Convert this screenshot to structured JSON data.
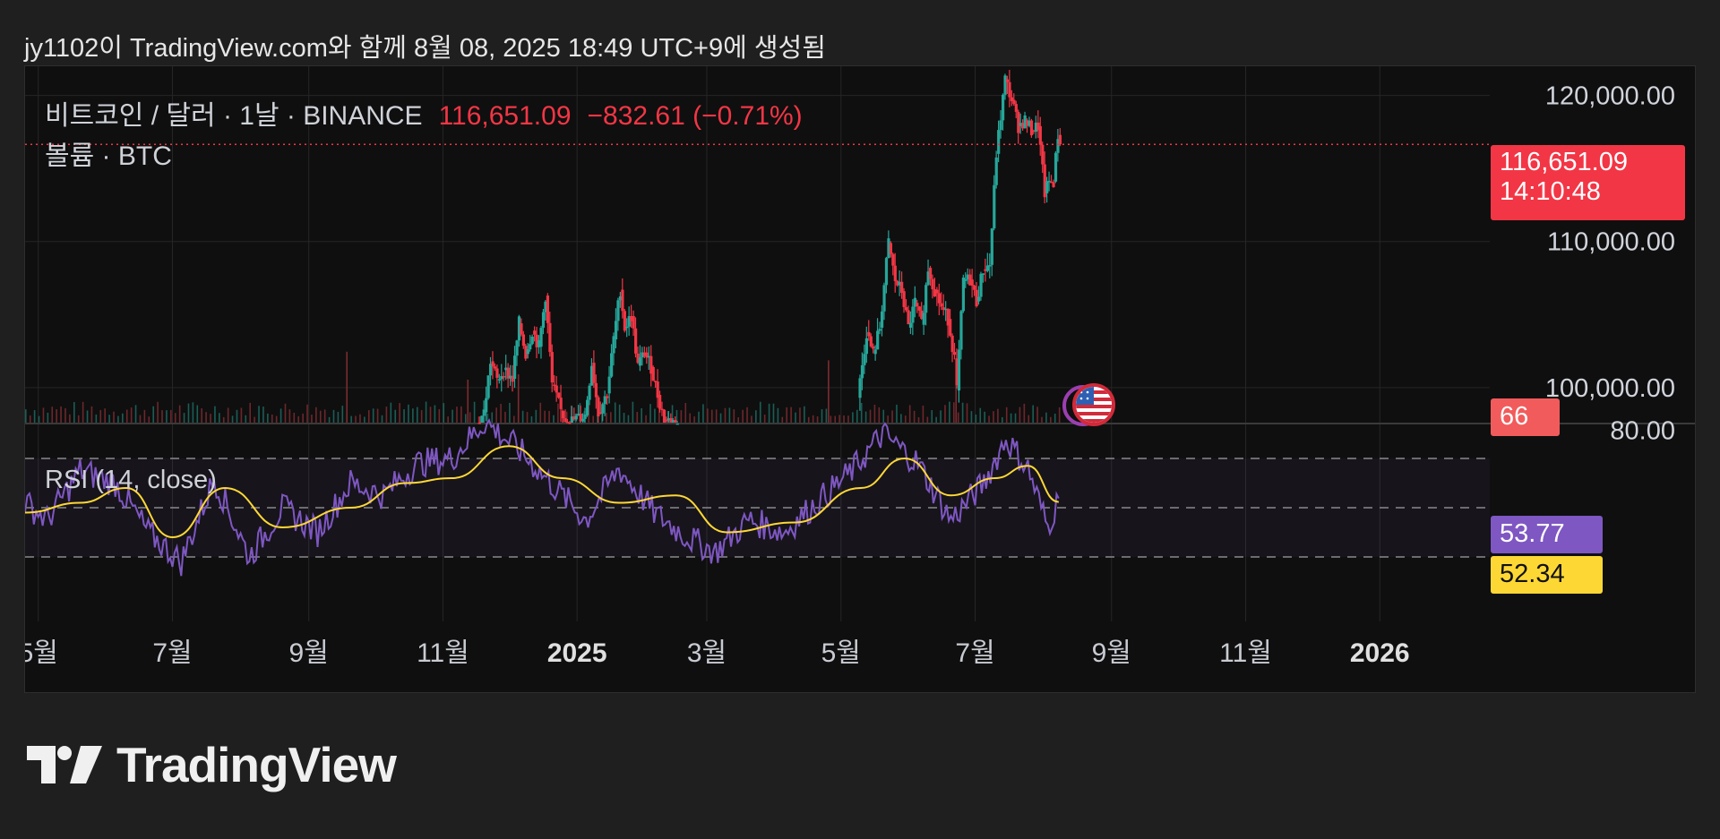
{
  "attribution": "jy1102이 TradingView.com와 함께 8월 08, 2025 18:49 UTC+9에 생성됨",
  "legend": {
    "symbol": "비트코인 / 달러 · 1날 · BINANCE",
    "last_price": "116,651.09",
    "change": "−832.61 (−0.71%)",
    "volume_label": "볼륨 · BTC",
    "rsi_label": "RSI (14, close)"
  },
  "tags": {
    "price": "116,651.09",
    "countdown": "14:10:48",
    "volume": "66",
    "rsi": "53.77",
    "rsi_ma": "52.34"
  },
  "colors": {
    "up": "#26a69a",
    "down": "#f23645",
    "rsi": "#7e57c2",
    "rsi_ma": "#fdd835",
    "background": "#0f0f0f"
  },
  "icons": {
    "event_marker": "us-flag-icon",
    "logo": "tradingview-logo-icon"
  },
  "logo_text": "TradingView",
  "chart_data": {
    "type": "candlestick",
    "x_range": [
      "2024-04-25",
      "2026-02-20"
    ],
    "price_axis": {
      "ticks": [
        120000,
        110000,
        100000
      ],
      "tick_labels": [
        "120,000.00",
        "110,000.00",
        "100,000.00"
      ],
      "range": [
        97600,
        122000
      ]
    },
    "last_price": 116651.09,
    "x_ticks": [
      {
        "date": "2024-05-01",
        "label": "5월",
        "bold": false
      },
      {
        "date": "2024-07-01",
        "label": "7월",
        "bold": false
      },
      {
        "date": "2024-09-01",
        "label": "9월",
        "bold": false
      },
      {
        "date": "2024-11-01",
        "label": "11월",
        "bold": false
      },
      {
        "date": "2025-01-01",
        "label": "2025",
        "bold": true
      },
      {
        "date": "2025-03-01",
        "label": "3월",
        "bold": false
      },
      {
        "date": "2025-05-01",
        "label": "5월",
        "bold": false
      },
      {
        "date": "2025-07-01",
        "label": "7월",
        "bold": false
      },
      {
        "date": "2025-09-01",
        "label": "9월",
        "bold": false
      },
      {
        "date": "2025-11-01",
        "label": "11월",
        "bold": false
      },
      {
        "date": "2026-01-01",
        "label": "2026",
        "bold": true
      }
    ],
    "price_series": [
      [
        "2024-11-16",
        97600
      ],
      [
        "2024-11-19",
        98300
      ],
      [
        "2024-11-22",
        101800
      ],
      [
        "2024-11-25",
        100500
      ],
      [
        "2024-11-28",
        101200
      ],
      [
        "2024-12-02",
        100600
      ],
      [
        "2024-12-05",
        104400
      ],
      [
        "2024-12-08",
        102300
      ],
      [
        "2024-12-11",
        103900
      ],
      [
        "2024-12-14",
        102800
      ],
      [
        "2024-12-17",
        106300
      ],
      [
        "2024-12-20",
        100200
      ],
      [
        "2024-12-24",
        98400
      ],
      [
        "2024-12-27",
        97600
      ],
      [
        "2025-01-04",
        98100
      ],
      [
        "2025-01-07",
        101700
      ],
      [
        "2025-01-10",
        98300
      ],
      [
        "2025-01-14",
        99600
      ],
      [
        "2025-01-17",
        103300
      ],
      [
        "2025-01-20",
        106700
      ],
      [
        "2025-01-22",
        104100
      ],
      [
        "2025-01-25",
        104900
      ],
      [
        "2025-01-28",
        101500
      ],
      [
        "2025-01-31",
        102400
      ],
      [
        "2025-02-03",
        101400
      ],
      [
        "2025-02-06",
        99500
      ],
      [
        "2025-02-09",
        97800
      ],
      [
        "2025-02-15",
        97600
      ],
      [
        "2025-05-08",
        99300
      ],
      [
        "2025-05-12",
        103800
      ],
      [
        "2025-05-15",
        102300
      ],
      [
        "2025-05-18",
        104100
      ],
      [
        "2025-05-22",
        109900
      ],
      [
        "2025-05-25",
        107300
      ],
      [
        "2025-05-28",
        106600
      ],
      [
        "2025-05-31",
        104100
      ],
      [
        "2025-06-03",
        105800
      ],
      [
        "2025-06-06",
        104300
      ],
      [
        "2025-06-09",
        108200
      ],
      [
        "2025-06-12",
        106700
      ],
      [
        "2025-06-15",
        105500
      ],
      [
        "2025-06-18",
        104700
      ],
      [
        "2025-06-21",
        102000
      ],
      [
        "2025-06-22",
        99800
      ],
      [
        "2025-06-25",
        107300
      ],
      [
        "2025-06-28",
        107400
      ],
      [
        "2025-07-01",
        105900
      ],
      [
        "2025-07-04",
        108100
      ],
      [
        "2025-07-07",
        108400
      ],
      [
        "2025-07-10",
        116000
      ],
      [
        "2025-07-14",
        121100
      ],
      [
        "2025-07-17",
        119700
      ],
      [
        "2025-07-20",
        117900
      ],
      [
        "2025-07-23",
        118300
      ],
      [
        "2025-07-26",
        117600
      ],
      [
        "2025-07-29",
        117900
      ],
      [
        "2025-08-01",
        113300
      ],
      [
        "2025-08-03",
        114100
      ],
      [
        "2025-08-05",
        114100
      ],
      [
        "2025-08-07",
        117300
      ],
      [
        "2025-08-08",
        116651.09
      ]
    ],
    "volume_spikes": [
      [
        "2024-09-18",
        66
      ],
      [
        "2024-11-12",
        40
      ],
      [
        "2024-12-05",
        45
      ],
      [
        "2025-04-25",
        58
      ],
      [
        "2025-06-22",
        35
      ]
    ],
    "rsi": {
      "label": "RSI (14, close)",
      "axis": {
        "ticks": [
          80
        ],
        "tick_labels": [
          "80.00"
        ]
      },
      "bands": [
        70,
        50,
        30
      ],
      "last": 53.77,
      "ma_last": 52.34,
      "series": [
        [
          "2024-04-25",
          52
        ],
        [
          "2024-05-05",
          45
        ],
        [
          "2024-05-20",
          65
        ],
        [
          "2024-06-05",
          60
        ],
        [
          "2024-06-20",
          40
        ],
        [
          "2024-07-05",
          28
        ],
        [
          "2024-07-20",
          62
        ],
        [
          "2024-08-05",
          30
        ],
        [
          "2024-08-20",
          50
        ],
        [
          "2024-09-05",
          40
        ],
        [
          "2024-09-20",
          60
        ],
        [
          "2024-10-05",
          55
        ],
        [
          "2024-10-20",
          68
        ],
        [
          "2024-11-05",
          70
        ],
        [
          "2024-11-20",
          85
        ],
        [
          "2024-12-05",
          74
        ],
        [
          "2024-12-20",
          60
        ],
        [
          "2025-01-05",
          45
        ],
        [
          "2025-01-20",
          66
        ],
        [
          "2025-02-05",
          48
        ],
        [
          "2025-02-20",
          38
        ],
        [
          "2025-03-05",
          32
        ],
        [
          "2025-03-20",
          45
        ],
        [
          "2025-04-05",
          40
        ],
        [
          "2025-04-20",
          52
        ],
        [
          "2025-05-05",
          64
        ],
        [
          "2025-05-20",
          80
        ],
        [
          "2025-06-05",
          68
        ],
        [
          "2025-06-20",
          45
        ],
        [
          "2025-07-05",
          60
        ],
        [
          "2025-07-15",
          78
        ],
        [
          "2025-07-25",
          66
        ],
        [
          "2025-08-03",
          42
        ],
        [
          "2025-08-08",
          53.77
        ]
      ],
      "ma_series": [
        [
          "2024-04-25",
          48
        ],
        [
          "2024-05-20",
          52
        ],
        [
          "2024-06-10",
          58
        ],
        [
          "2024-07-01",
          38
        ],
        [
          "2024-07-25",
          58
        ],
        [
          "2024-08-20",
          42
        ],
        [
          "2024-09-20",
          50
        ],
        [
          "2024-10-15",
          60
        ],
        [
          "2024-11-05",
          62
        ],
        [
          "2024-12-01",
          75
        ],
        [
          "2024-12-25",
          62
        ],
        [
          "2025-01-20",
          52
        ],
        [
          "2025-02-15",
          55
        ],
        [
          "2025-03-10",
          40
        ],
        [
          "2025-04-10",
          44
        ],
        [
          "2025-05-10",
          58
        ],
        [
          "2025-05-30",
          70
        ],
        [
          "2025-06-20",
          55
        ],
        [
          "2025-07-10",
          62
        ],
        [
          "2025-07-25",
          67
        ],
        [
          "2025-08-08",
          52.34
        ]
      ]
    }
  }
}
